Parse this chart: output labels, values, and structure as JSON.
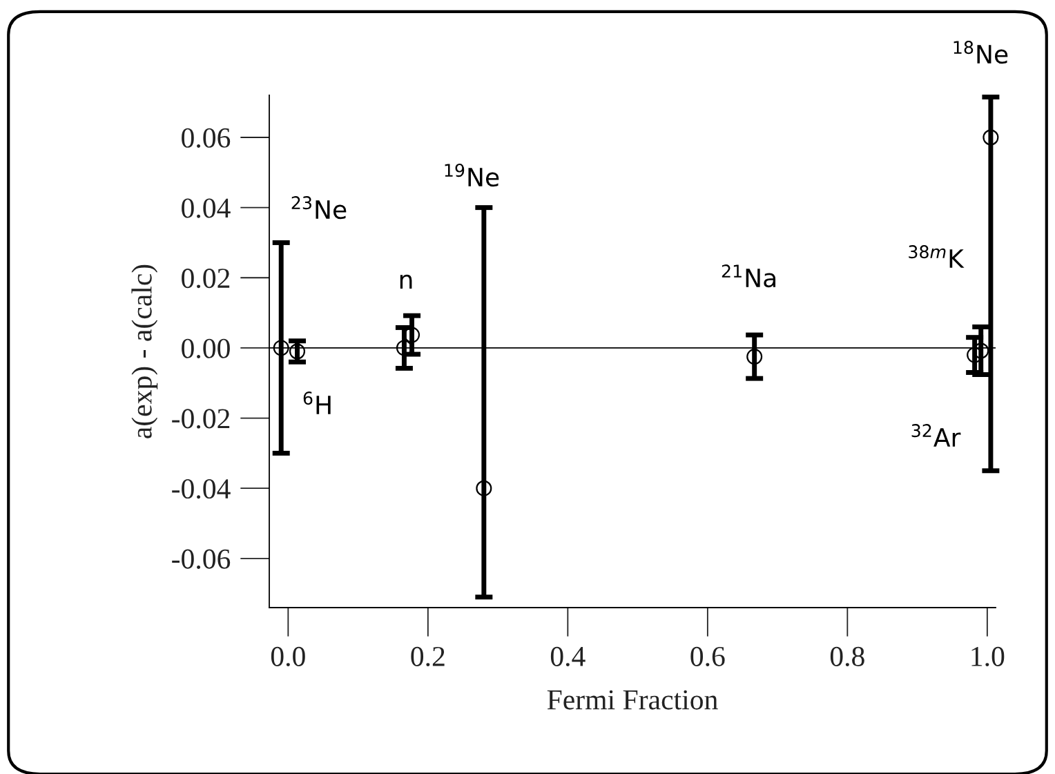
{
  "chart_data": {
    "type": "scatter",
    "xlabel": "Fermi Fraction",
    "ylabel": "a(exp) - a(calc)",
    "xlim": [
      -0.027,
      1.012
    ],
    "ylim": [
      -0.074,
      0.072
    ],
    "xticks": [
      {
        "value": 0,
        "label": "0.0"
      },
      {
        "value": 0.2,
        "label": "0.2"
      },
      {
        "value": 0.4,
        "label": "0.4"
      },
      {
        "value": 0.6,
        "label": "0.6"
      },
      {
        "value": 0.8,
        "label": "0.8"
      },
      {
        "value": 1.0,
        "label": "1.0"
      }
    ],
    "yticks": [
      {
        "value": -0.06,
        "label": "-0.06"
      },
      {
        "value": -0.04,
        "label": "-0.04"
      },
      {
        "value": -0.02,
        "label": "-0.02"
      },
      {
        "value": 0,
        "label": "0.00"
      },
      {
        "value": 0.02,
        "label": "0.02"
      },
      {
        "value": 0.04,
        "label": "0.04"
      },
      {
        "value": 0.06,
        "label": "0.06"
      }
    ],
    "marker": "circle",
    "grid": false,
    "legend": false,
    "series": [
      {
        "color": "#000000",
        "x": [
          -0.01,
          0.013,
          0.166,
          0.177,
          0.28,
          0.667,
          0.982,
          0.991,
          1.005
        ],
        "values": [
          0.0,
          -0.001,
          0.0,
          0.0037,
          -0.04,
          -0.0025,
          -0.002,
          -0.0008,
          0.06
        ],
        "errors": [
          0.03,
          0.003,
          0.0058,
          0.0055,
          [
            -0.071,
            0.04
          ],
          0.0062,
          0.005,
          0.0068,
          [
            -0.035,
            0.0715
          ]
        ]
      }
    ],
    "ref_lines": [
      {
        "axis": "y",
        "value": 0,
        "color": "#000000"
      }
    ],
    "annotations": [
      "$^{18}$Ne",
      "$^{19}$Ne",
      "$^{23}$Ne",
      "n",
      "$^{21}$Na",
      "$^{38m}$K",
      "$^{6}$H",
      "$^{32}$Ar"
    ]
  }
}
